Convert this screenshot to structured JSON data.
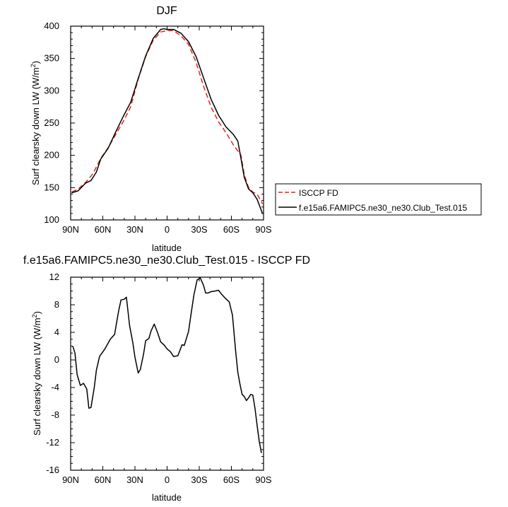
{
  "chart_data": [
    {
      "type": "line",
      "title": "DJF",
      "xlabel": "latitude",
      "ylabel_main": "Surf clearsky down LW (W/m",
      "ylabel_sup": "2",
      "ylabel_close": ")",
      "xlim": [
        90,
        -90
      ],
      "ylim": [
        100,
        400
      ],
      "x_ticks": [
        90,
        60,
        30,
        0,
        -30,
        -60,
        -90
      ],
      "x_tick_labels": [
        "90N",
        "60N",
        "30N",
        "0",
        "30S",
        "60S",
        "90S"
      ],
      "y_ticks": [
        100,
        150,
        200,
        250,
        300,
        350,
        400
      ],
      "y_tick_labels": [
        "100",
        "150",
        "200",
        "250",
        "300",
        "350",
        "400"
      ],
      "legend_position": "right",
      "series": [
        {
          "name": "ISCCP FD",
          "color": "#e8201c",
          "dash": true,
          "x": [
            89,
            83,
            76,
            69,
            62,
            55,
            48,
            41,
            34,
            27,
            20,
            13,
            6,
            0,
            -6,
            -13,
            -20,
            -27,
            -34,
            -41,
            -48,
            -55,
            -62,
            -69,
            -72,
            -76,
            -80,
            -84,
            -89
          ],
          "y": [
            143,
            148,
            158,
            172,
            195,
            212,
            232,
            252,
            275,
            318,
            353,
            378,
            391,
            393,
            393,
            385,
            372,
            344,
            307,
            275,
            252,
            235,
            216,
            200,
            170,
            150,
            143,
            140,
            125
          ]
        },
        {
          "name": "f.e15a6.FAMIPC5.ne30_ne30.Club_Test.015",
          "color": "#000000",
          "dash": false,
          "x": [
            89,
            83,
            76,
            71,
            66,
            62,
            55,
            48,
            41,
            34,
            27,
            20,
            13,
            6,
            3,
            0,
            -6,
            -13,
            -20,
            -27,
            -34,
            -41,
            -48,
            -55,
            -62,
            -66,
            -69,
            -72,
            -76,
            -80,
            -84,
            -89
          ],
          "y": [
            142,
            145,
            157,
            161,
            174,
            194,
            211,
            236,
            260,
            282,
            319,
            354,
            381,
            395,
            396,
            395,
            395,
            389,
            376,
            353,
            320,
            287,
            262,
            244,
            232,
            222,
            195,
            166,
            148,
            142,
            132,
            110
          ]
        }
      ]
    },
    {
      "type": "line",
      "title": "f.e15a6.FAMIPC5.ne30_ne30.Club_Test.015 - ISCCP FD",
      "xlabel": "latitude",
      "ylabel_main": "Surf clearsky down LW (W/m",
      "ylabel_sup": "2",
      "ylabel_close": ")",
      "xlim": [
        90,
        -90
      ],
      "ylim": [
        -16,
        12
      ],
      "x_ticks": [
        90,
        60,
        30,
        0,
        -30,
        -60,
        -90
      ],
      "x_tick_labels": [
        "90N",
        "60N",
        "30N",
        "0",
        "30S",
        "60S",
        "90S"
      ],
      "y_ticks": [
        -16,
        -12,
        -8,
        -4,
        0,
        4,
        8,
        12
      ],
      "y_tick_labels": [
        "-16",
        "-12",
        "-8",
        "-4",
        "0",
        "4",
        "8",
        "12"
      ],
      "series": [
        {
          "color": "#000000",
          "x": [
            88,
            86,
            84,
            81,
            78,
            75,
            73,
            71,
            68,
            66,
            63,
            58,
            53,
            49,
            47,
            45,
            43,
            40,
            38,
            35,
            32,
            30,
            27,
            25,
            22,
            20,
            17,
            15,
            12,
            9,
            6,
            3,
            0,
            -3,
            -6,
            -10,
            -14,
            -16,
            -20,
            -22,
            -25,
            -28,
            -31,
            -34,
            -36,
            -38,
            -41,
            -45,
            -48,
            -51,
            -54,
            -58,
            -61,
            -64,
            -66,
            -68,
            -70,
            -72,
            -74,
            -76,
            -78,
            -80,
            -82,
            -84,
            -86,
            -88
          ],
          "y": [
            2,
            1,
            -2.1,
            -3.7,
            -3.4,
            -4.2,
            -7,
            -6.9,
            -4,
            -1.5,
            0.5,
            1.6,
            3,
            3.7,
            5.5,
            7.3,
            8.7,
            8.8,
            9.1,
            5,
            2.5,
            0.4,
            -1.9,
            -1.4,
            0.8,
            2.8,
            3.1,
            4.2,
            5.2,
            4,
            2.6,
            2.2,
            1.6,
            1.2,
            0.5,
            0.6,
            2.2,
            2.1,
            4.1,
            6.3,
            9.4,
            11.6,
            11.9,
            10.8,
            9.7,
            9.7,
            9.9,
            10,
            10.1,
            9.5,
            9,
            8.4,
            6.5,
            1.2,
            -1.8,
            -3.5,
            -5,
            -5.3,
            -5.9,
            -5.5,
            -5,
            -5.1,
            -7,
            -9.5,
            -11.8,
            -13.5
          ]
        }
      ]
    }
  ]
}
